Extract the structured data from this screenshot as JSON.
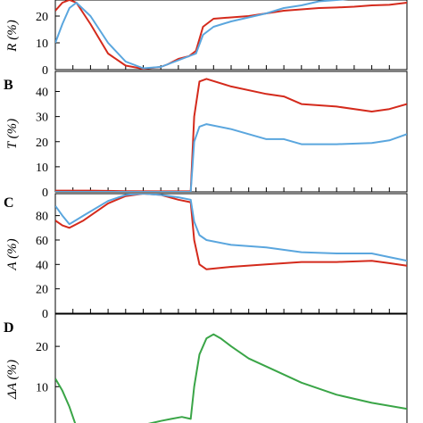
{
  "chart_data": [
    {
      "panel": "A",
      "type": "line",
      "ylabel": "R (%)",
      "ylim": [
        0,
        26
      ],
      "yticks": [
        "0",
        "10",
        "20"
      ],
      "series": [
        {
          "color": "#d42a1c",
          "x": [
            0,
            2,
            4,
            6,
            10,
            15,
            20,
            25,
            30,
            32,
            35,
            38,
            40,
            42,
            45,
            50,
            55,
            60,
            65,
            70,
            75,
            80,
            85,
            90,
            95,
            100
          ],
          "values": [
            22,
            25,
            26,
            25,
            17,
            6,
            1.5,
            0.3,
            1,
            2,
            4,
            5,
            7,
            16,
            19,
            19.5,
            20,
            21,
            22,
            22.5,
            23,
            23.2,
            23.5,
            24,
            24.2,
            25
          ]
        },
        {
          "color": "#5aa6de",
          "x": [
            0,
            2,
            4,
            6,
            10,
            15,
            20,
            25,
            30,
            32,
            35,
            38,
            40,
            42,
            45,
            50,
            55,
            60,
            65,
            70,
            75,
            80,
            85,
            90,
            95,
            100
          ],
          "values": [
            10,
            17,
            23,
            25,
            20,
            10,
            3,
            0.5,
            1,
            2,
            3.5,
            5,
            6,
            13,
            16,
            18,
            19.5,
            21,
            23,
            24,
            25.5,
            26,
            26.5,
            27,
            27.5,
            28
          ]
        }
      ]
    },
    {
      "panel": "B",
      "type": "line",
      "ylabel": "T (%)",
      "ylim": [
        0,
        48
      ],
      "yticks": [
        "0",
        "10",
        "20",
        "30",
        "40"
      ],
      "series": [
        {
          "color": "#d42a1c",
          "x": [
            0,
            10,
            20,
            30,
            38.5,
            39.5,
            41,
            43,
            50,
            60,
            65,
            70,
            80,
            90,
            95,
            100
          ],
          "values": [
            0.5,
            0.5,
            0.3,
            0.2,
            0.2,
            30,
            44,
            45,
            42,
            39,
            38,
            35,
            34,
            32,
            33,
            35
          ]
        },
        {
          "color": "#5aa6de",
          "x": [
            0,
            10,
            20,
            30,
            38.5,
            39.5,
            41,
            43,
            50,
            60,
            65,
            70,
            80,
            90,
            95,
            100
          ],
          "values": [
            0,
            0,
            0,
            0,
            0,
            20,
            26,
            27,
            25,
            21,
            21,
            19,
            19,
            19.5,
            20.5,
            23
          ]
        }
      ]
    },
    {
      "panel": "C",
      "type": "line",
      "ylabel": "A (%)",
      "ylim": [
        0,
        98
      ],
      "yticks": [
        "0",
        "20",
        "40",
        "60",
        "80"
      ],
      "series": [
        {
          "color": "#d42a1c",
          "x": [
            0,
            2,
            4,
            8,
            15,
            20,
            25,
            30,
            35,
            38.5,
            39.5,
            41,
            43,
            50,
            60,
            70,
            80,
            90,
            95,
            100
          ],
          "values": [
            76,
            72,
            70,
            76,
            90,
            96,
            98,
            97,
            93,
            91,
            60,
            40,
            36,
            38,
            40,
            42,
            42,
            43,
            41,
            39
          ]
        },
        {
          "color": "#5aa6de",
          "x": [
            0,
            2,
            4,
            8,
            15,
            20,
            25,
            30,
            35,
            38.5,
            39.5,
            41,
            43,
            50,
            60,
            70,
            80,
            90,
            95,
            100
          ],
          "values": [
            88,
            80,
            73,
            80,
            92,
            97,
            98,
            97,
            95,
            93,
            75,
            64,
            60,
            56,
            54,
            50,
            49,
            49,
            46,
            43
          ]
        }
      ]
    },
    {
      "panel": "D",
      "type": "line",
      "ylabel": "ΔA (%)",
      "ylim": [
        -3,
        28
      ],
      "yticks": [
        "0",
        "10",
        "20"
      ],
      "reference_line": 0,
      "series": [
        {
          "color": "#3aa547",
          "x": [
            0,
            2,
            4,
            6,
            8,
            10,
            12,
            15,
            20,
            25,
            30,
            33,
            36,
            38.5,
            39.5,
            41,
            43,
            45,
            47,
            50,
            55,
            60,
            70,
            80,
            90,
            100
          ],
          "values": [
            12,
            9,
            5,
            0,
            -3,
            -4,
            -4,
            -3,
            -1,
            0.5,
            1.5,
            2,
            2.5,
            2,
            10,
            18,
            22,
            23,
            22,
            20,
            17,
            15,
            11,
            8,
            6,
            4.5
          ]
        }
      ]
    }
  ]
}
